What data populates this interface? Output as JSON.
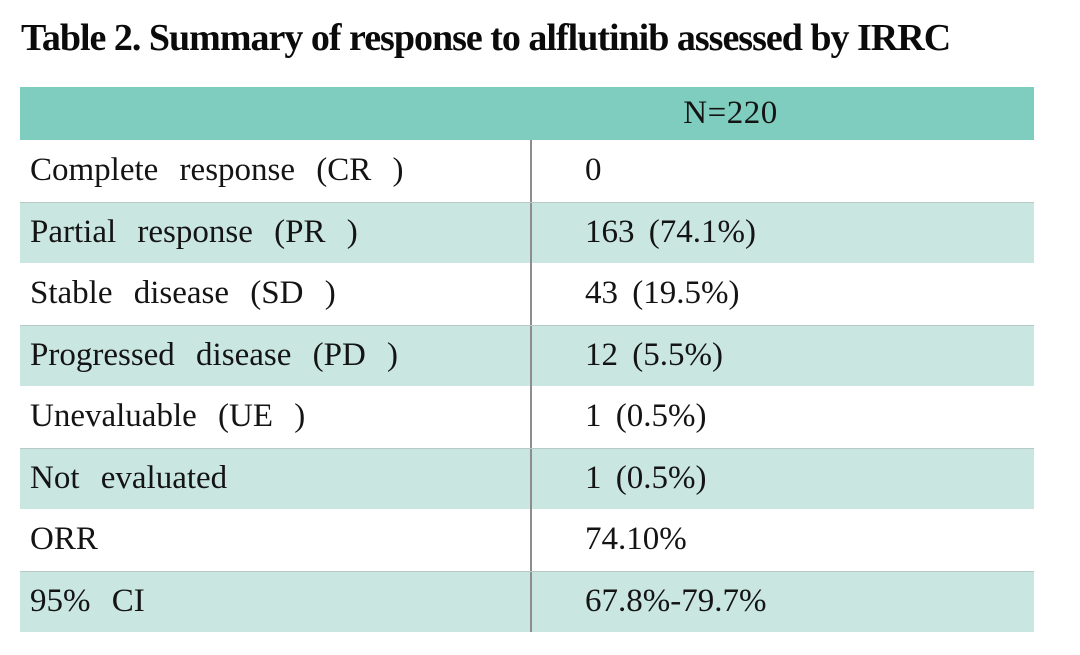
{
  "title": "Table 2. Summary of response to alflutinib assessed by IRRC",
  "table": {
    "header": {
      "label_col": "",
      "value_col": "N=220"
    },
    "rows": [
      {
        "label": "Complete response (CR )",
        "value": "0"
      },
      {
        "label": "Partial response (PR )",
        "value": "163 (74.1%)"
      },
      {
        "label": "Stable disease (SD )",
        "value": "43 (19.5%)"
      },
      {
        "label": "Progressed disease (PD )",
        "value": "12 (5.5%)"
      },
      {
        "label": "Unevaluable (UE )",
        "value": "1 (0.5%)"
      },
      {
        "label": "Not evaluated",
        "value": "1 (0.5%)"
      },
      {
        "label": "ORR",
        "value": "74.10%"
      },
      {
        "label": "95% CI",
        "value": "67.8%-79.7%"
      }
    ],
    "colors": {
      "header_bg": "#7ecdbe",
      "stripe_bg": "#c9e7e0",
      "divider": "#8d8d8d",
      "text": "#141414"
    }
  }
}
